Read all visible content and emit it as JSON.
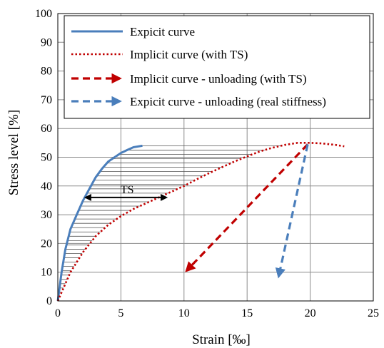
{
  "chart_data": {
    "type": "line",
    "title": "",
    "xlabel": "Strain [‰]",
    "ylabel": "Stress level [%]",
    "xlim": [
      0,
      25
    ],
    "ylim": [
      0,
      100
    ],
    "xticks": [
      "0",
      "5",
      "10",
      "15",
      "20",
      "25"
    ],
    "yticks": [
      "0",
      "10",
      "20",
      "30",
      "40",
      "50",
      "60",
      "70",
      "80",
      "90",
      "100"
    ],
    "grid": true,
    "legend_position": "top",
    "series": [
      {
        "name": "Expicit curve",
        "color": "#4a7ebb",
        "style": "solid",
        "x": [
          0,
          0.3,
          0.6,
          1.0,
          1.5,
          2.0,
          2.5,
          3.0,
          3.5,
          4.0,
          4.5,
          5.0,
          5.5,
          6.0,
          6.7
        ],
        "y": [
          0,
          10,
          18,
          25,
          30,
          35,
          39,
          43,
          46,
          48.5,
          50,
          51.5,
          52.5,
          53.5,
          54
        ]
      },
      {
        "name": "Implicit curve (with TS)",
        "color": "#c00000",
        "style": "dotted",
        "x": [
          0,
          1,
          2,
          3,
          4,
          5,
          6,
          7,
          8,
          9,
          10,
          11,
          12,
          13,
          14,
          15,
          16,
          17,
          18,
          19,
          20,
          21,
          22,
          22.7
        ],
        "y": [
          0,
          10,
          17,
          22.5,
          26.5,
          29.5,
          32,
          34,
          36,
          38,
          40,
          42.3,
          44.5,
          46.5,
          48.5,
          50.3,
          52,
          53.3,
          54.3,
          55,
          55,
          54.8,
          54.3,
          53.8
        ]
      },
      {
        "name": "Implicit curve - unloading (with TS)",
        "color": "#c00000",
        "style": "dashed-arrow",
        "x": [
          19.8,
          10.2
        ],
        "y": [
          54.5,
          10.5
        ]
      },
      {
        "name": "Expicit curve - unloading (real stiffness)",
        "color": "#4a7ebb",
        "style": "dashed-arrow",
        "x": [
          19.8,
          17.5
        ],
        "y": [
          54.5,
          8.5
        ]
      }
    ],
    "annotations": [
      {
        "text": "TS",
        "x": 5.5,
        "y": 36,
        "span_x": [
          2.2,
          8.6
        ]
      }
    ],
    "hatch_region": {
      "from_series": 0,
      "to_series": 1,
      "y_range": [
        0,
        54
      ]
    }
  }
}
